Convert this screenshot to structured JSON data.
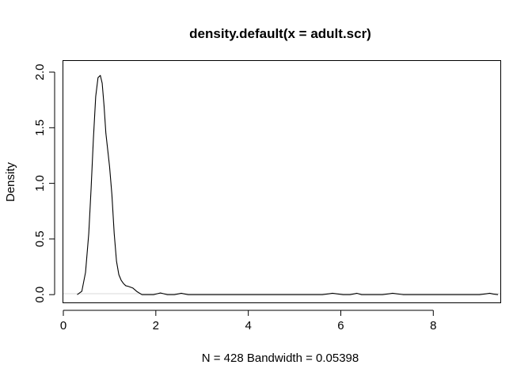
{
  "chart_data": {
    "type": "line",
    "title": "density.default(x = adult.scr)",
    "xlabel": "N = 428   Bandwidth = 0.05398",
    "ylabel": "Density",
    "xlim": [
      0,
      9.45
    ],
    "ylim": [
      -0.07,
      2.1
    ],
    "xticks": [
      0,
      2,
      4,
      6,
      8
    ],
    "yticks": [
      0.0,
      0.5,
      1.0,
      1.5,
      2.0
    ],
    "xtick_labels": [
      "0",
      "2",
      "4",
      "6",
      "8"
    ],
    "ytick_labels": [
      "0.0",
      "0.5",
      "1.0",
      "1.5",
      "2.0"
    ],
    "grid": false,
    "series": [
      {
        "x": [
          0.3,
          0.4,
          0.48,
          0.55,
          0.6,
          0.65,
          0.7,
          0.75,
          0.8,
          0.84,
          0.88,
          0.92,
          0.96,
          1.0,
          1.05,
          1.1,
          1.15,
          1.2,
          1.25,
          1.3,
          1.35,
          1.4,
          1.5,
          1.6,
          1.7,
          1.8,
          1.95,
          2.05,
          2.1,
          2.15,
          2.25,
          2.4,
          2.5,
          2.55,
          2.6,
          2.7,
          3.0,
          4.0,
          5.0,
          5.6,
          5.75,
          5.82,
          5.9,
          6.05,
          6.2,
          6.3,
          6.35,
          6.45,
          6.6,
          6.9,
          7.05,
          7.12,
          7.2,
          7.35,
          8.0,
          9.0,
          9.15,
          9.22,
          9.3,
          9.4
        ],
        "y": [
          0.0,
          0.03,
          0.2,
          0.55,
          0.95,
          1.4,
          1.78,
          1.95,
          1.97,
          1.9,
          1.7,
          1.45,
          1.3,
          1.15,
          0.9,
          0.55,
          0.3,
          0.18,
          0.13,
          0.1,
          0.08,
          0.075,
          0.06,
          0.025,
          0.0,
          0.0,
          0.0,
          0.01,
          0.015,
          0.01,
          0.0,
          0.0,
          0.008,
          0.012,
          0.008,
          0.0,
          0.0,
          0.0,
          0.0,
          0.0,
          0.008,
          0.012,
          0.008,
          0.0,
          0.0,
          0.008,
          0.012,
          0.0,
          0.0,
          0.0,
          0.008,
          0.012,
          0.008,
          0.0,
          0.0,
          0.0,
          0.008,
          0.012,
          0.005,
          0.0
        ]
      }
    ]
  }
}
